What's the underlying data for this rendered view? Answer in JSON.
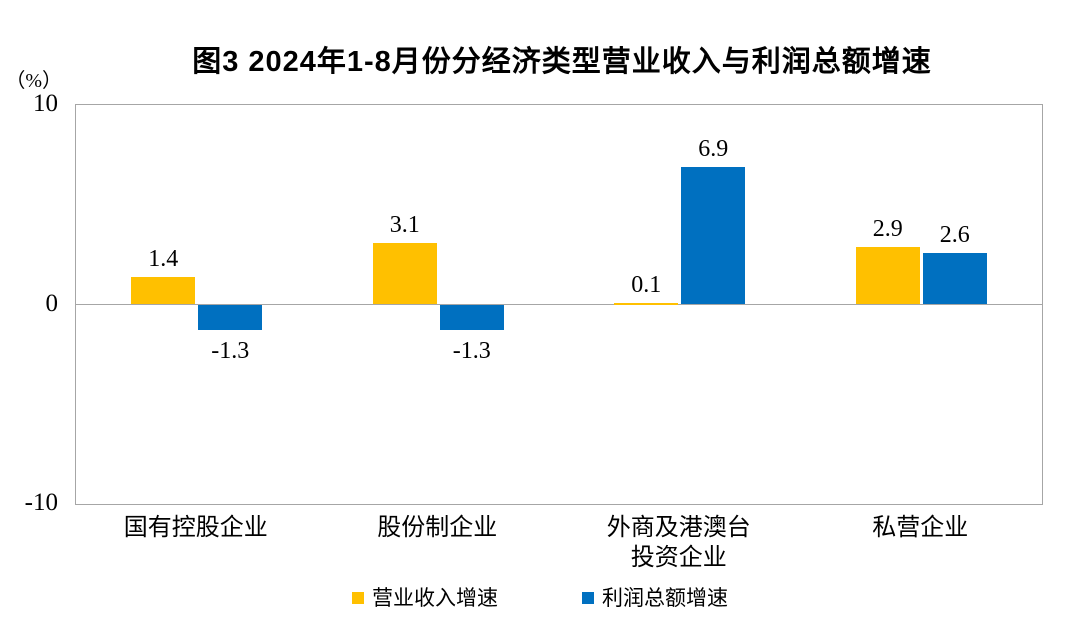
{
  "title": "图3 2024年1-8月份分经济类型营业收入与利润总额增速",
  "y_axis": {
    "unit_label": "（%）",
    "ticks": [
      {
        "label": "10",
        "value": 10
      },
      {
        "label": "0",
        "value": 0
      },
      {
        "label": "-10",
        "value": -10
      }
    ]
  },
  "colors": {
    "revenue_series": "#FFC000",
    "profit_series": "#0070C0",
    "axis_line": "#a6a6a6",
    "text": "#000000"
  },
  "chart_data": {
    "type": "bar",
    "title": "图3 2024年1-8月份分经济类型营业收入与利润总额增速",
    "ylabel": "（%）",
    "ylim": [
      -10,
      10
    ],
    "y_ticks": [
      10,
      0,
      -10
    ],
    "grid": "zero-line-only",
    "legend_position": "bottom",
    "data_labels": true,
    "categories": [
      "国有控股企业",
      "股份制企业",
      "外商及港澳台\n投资企业",
      "私营企业"
    ],
    "series": [
      {
        "name": "营业收入增速",
        "color": "#FFC000",
        "values": [
          1.4,
          3.1,
          0.1,
          2.9
        ]
      },
      {
        "name": "利润总额增速",
        "color": "#0070C0",
        "values": [
          -1.3,
          -1.3,
          6.9,
          2.6
        ]
      }
    ]
  },
  "legend": {
    "items": [
      {
        "label": "营业收入增速",
        "color": "#FFC000"
      },
      {
        "label": "利润总额增速",
        "color": "#0070C0"
      }
    ]
  }
}
